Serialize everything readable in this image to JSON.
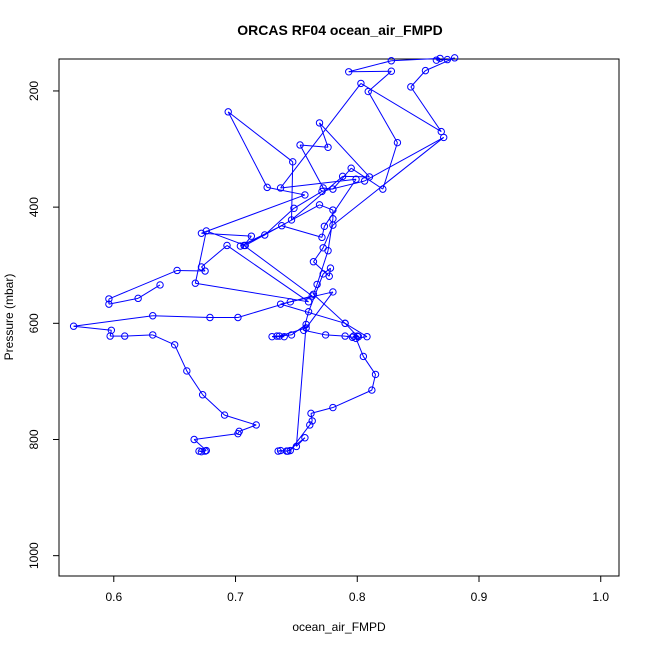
{
  "chart_data": {
    "type": "line",
    "title": "ORCAS RF04 ocean_air_FMPD",
    "xlabel": "ocean_air_FMPD",
    "ylabel": "Pressure (mbar)",
    "xlim": [
      0.555,
      1.015
    ],
    "ylim": [
      1035,
      145
    ],
    "y_inverted": true,
    "x_ticks": [
      0.6,
      0.7,
      0.8,
      0.9,
      1.0
    ],
    "x_tick_labels": [
      "0.6",
      "0.7",
      "0.8",
      "0.9",
      "1.0"
    ],
    "y_ticks": [
      200,
      400,
      600,
      800,
      1000
    ],
    "y_tick_labels": [
      "200",
      "400",
      "600",
      "800",
      "1000"
    ],
    "grid": false,
    "legend": "none",
    "series": [
      {
        "color": "#0000ff",
        "marker": "open-circle",
        "points": [
          [
            0.675,
            820
          ],
          [
            0.67,
            820
          ],
          [
            0.672,
            821
          ],
          [
            0.676,
            819
          ],
          [
            0.666,
            800
          ],
          [
            0.702,
            790
          ],
          [
            0.703,
            786
          ],
          [
            0.717,
            775
          ],
          [
            0.691,
            758
          ],
          [
            0.673,
            723
          ],
          [
            0.66,
            682
          ],
          [
            0.65,
            637
          ],
          [
            0.632,
            620
          ],
          [
            0.609,
            622
          ],
          [
            0.597,
            622
          ],
          [
            0.598,
            612
          ],
          [
            0.567,
            605
          ],
          [
            0.632,
            587
          ],
          [
            0.679,
            590
          ],
          [
            0.702,
            590
          ],
          [
            0.745,
            563
          ],
          [
            0.763,
            553
          ],
          [
            0.707,
            466
          ],
          [
            0.713,
            450
          ],
          [
            0.672,
            445
          ],
          [
            0.757,
            379
          ],
          [
            0.726,
            366
          ],
          [
            0.694,
            236
          ],
          [
            0.747,
            322
          ],
          [
            0.746,
            422
          ],
          [
            0.788,
            347
          ],
          [
            0.81,
            348
          ],
          [
            0.769,
            255
          ],
          [
            0.776,
            297
          ],
          [
            0.753,
            293
          ],
          [
            0.772,
            367
          ],
          [
            0.78,
            369
          ],
          [
            0.795,
            333
          ],
          [
            0.821,
            369
          ],
          [
            0.833,
            289
          ],
          [
            0.809,
            201
          ],
          [
            0.828,
            166
          ],
          [
            0.793,
            167
          ],
          [
            0.828,
            148
          ],
          [
            0.868,
            144
          ],
          [
            0.865,
            147
          ],
          [
            0.874,
            146
          ],
          [
            0.88,
            143
          ],
          [
            0.856,
            165
          ],
          [
            0.844,
            193
          ],
          [
            0.869,
            270
          ],
          [
            0.803,
            187
          ],
          [
            0.737,
            367
          ],
          [
            0.799,
            352
          ],
          [
            0.773,
            433
          ],
          [
            0.771,
            452
          ],
          [
            0.738,
            432
          ],
          [
            0.704,
            467
          ],
          [
            0.724,
            448
          ],
          [
            0.748,
            402
          ],
          [
            0.771,
            373
          ],
          [
            0.806,
            355
          ],
          [
            0.871,
            280
          ],
          [
            0.78,
            431
          ],
          [
            0.772,
            470
          ],
          [
            0.764,
            494
          ],
          [
            0.777,
            519
          ],
          [
            0.778,
            505
          ],
          [
            0.772,
            515
          ],
          [
            0.76,
            580
          ],
          [
            0.756,
            612
          ],
          [
            0.774,
            620
          ],
          [
            0.79,
            622
          ],
          [
            0.796,
            624
          ],
          [
            0.801,
            623
          ],
          [
            0.797,
            622
          ],
          [
            0.8,
            622
          ],
          [
            0.79,
            600
          ],
          [
            0.737,
            567
          ],
          [
            0.78,
            546
          ],
          [
            0.758,
            608
          ],
          [
            0.736,
            622
          ],
          [
            0.73,
            623
          ],
          [
            0.74,
            623
          ],
          [
            0.734,
            622
          ],
          [
            0.746,
            620
          ],
          [
            0.758,
            602
          ],
          [
            0.75,
            812
          ],
          [
            0.757,
            797
          ],
          [
            0.743,
            820
          ],
          [
            0.737,
            819
          ],
          [
            0.735,
            820
          ],
          [
            0.742,
            820
          ],
          [
            0.745,
            819
          ],
          [
            0.761,
            775
          ],
          [
            0.763,
            768
          ],
          [
            0.762,
            755
          ],
          [
            0.78,
            745
          ],
          [
            0.812,
            715
          ],
          [
            0.815,
            688
          ],
          [
            0.805,
            657
          ],
          [
            0.799,
            626
          ],
          [
            0.808,
            623
          ],
          [
            0.79,
            600
          ],
          [
            0.764,
            550
          ],
          [
            0.767,
            533
          ],
          [
            0.776,
            475
          ],
          [
            0.78,
            420
          ],
          [
            0.78,
            405
          ],
          [
            0.769,
            396
          ],
          [
            0.708,
            466
          ],
          [
            0.676,
            441
          ],
          [
            0.667,
            531
          ],
          [
            0.76,
            563
          ],
          [
            0.693,
            466
          ],
          [
            0.672,
            503
          ],
          [
            0.675,
            510
          ],
          [
            0.652,
            509
          ],
          [
            0.596,
            558
          ],
          [
            0.596,
            567
          ],
          [
            0.62,
            557
          ],
          [
            0.638,
            534
          ]
        ]
      }
    ]
  }
}
